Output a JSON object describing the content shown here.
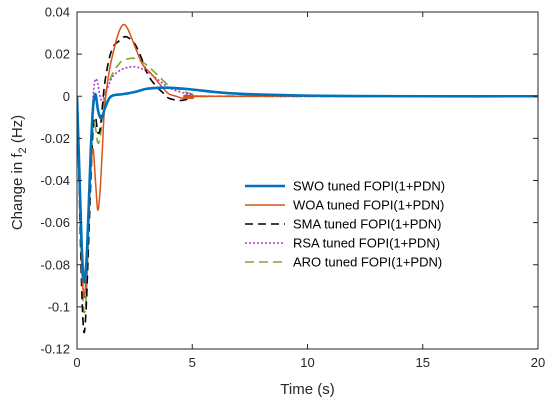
{
  "chart_data": {
    "type": "line",
    "title": "",
    "xlabel": "Time (s)",
    "ylabel_prefix": "Change in f",
    "ylabel_sub": "2",
    "ylabel_suffix": " (Hz)",
    "xlim": [
      0,
      20
    ],
    "ylim": [
      -0.12,
      0.04
    ],
    "xticks": [
      0,
      5,
      10,
      15,
      20
    ],
    "xtick_labels": [
      "0",
      "5",
      "10",
      "15",
      "20"
    ],
    "yticks": [
      -0.12,
      -0.1,
      -0.08,
      -0.06,
      -0.04,
      -0.02,
      0,
      0.02,
      0.04
    ],
    "ytick_labels": [
      "-0.12",
      "-0.1",
      "-0.08",
      "-0.06",
      "-0.04",
      "-0.02",
      "0",
      "0.02",
      "0.04"
    ],
    "grid": false,
    "legend_position": "center-right",
    "series": [
      {
        "name": "SWO tuned FOPI(1+PDN)",
        "color": "#0072BD",
        "dash": "solid",
        "width": 2.6,
        "points": [
          [
            0,
            0
          ],
          [
            0.1,
            -0.035
          ],
          [
            0.2,
            -0.07
          ],
          [
            0.3,
            -0.088
          ],
          [
            0.4,
            -0.08
          ],
          [
            0.5,
            -0.055
          ],
          [
            0.6,
            -0.025
          ],
          [
            0.7,
            -0.005
          ],
          [
            0.8,
            0.001
          ],
          [
            0.9,
            -0.006
          ],
          [
            1.0,
            -0.01
          ],
          [
            1.1,
            -0.01
          ],
          [
            1.2,
            -0.006
          ],
          [
            1.4,
            -0.001
          ],
          [
            1.6,
            0.0005
          ],
          [
            2.0,
            0.001
          ],
          [
            2.5,
            0.002
          ],
          [
            3.0,
            0.0035
          ],
          [
            3.5,
            0.004
          ],
          [
            4.0,
            0.004
          ],
          [
            5.0,
            0.0032
          ],
          [
            6.0,
            0.002
          ],
          [
            7.0,
            0.0012
          ],
          [
            8.0,
            0.0008
          ],
          [
            10.0,
            0.0003
          ],
          [
            12.0,
            0.0001
          ],
          [
            15.0,
            0
          ],
          [
            20.0,
            0
          ]
        ]
      },
      {
        "name": "WOA tuned FOPI(1+PDN)",
        "color": "#D95319",
        "dash": "solid",
        "width": 1.5,
        "points": [
          [
            0,
            0
          ],
          [
            0.1,
            -0.04
          ],
          [
            0.2,
            -0.08
          ],
          [
            0.3,
            -0.095
          ],
          [
            0.4,
            -0.085
          ],
          [
            0.5,
            -0.06
          ],
          [
            0.6,
            -0.035
          ],
          [
            0.7,
            -0.025
          ],
          [
            0.8,
            -0.04
          ],
          [
            0.9,
            -0.054
          ],
          [
            1.0,
            -0.045
          ],
          [
            1.1,
            -0.025
          ],
          [
            1.2,
            -0.005
          ],
          [
            1.4,
            0.012
          ],
          [
            1.6,
            0.022
          ],
          [
            1.8,
            0.03
          ],
          [
            2.0,
            0.034
          ],
          [
            2.2,
            0.032
          ],
          [
            2.5,
            0.024
          ],
          [
            2.8,
            0.016
          ],
          [
            3.0,
            0.013
          ],
          [
            3.2,
            0.011
          ],
          [
            3.5,
            0.007
          ],
          [
            3.8,
            0.003
          ],
          [
            4.0,
            0.001
          ],
          [
            4.3,
            0.0
          ],
          [
            4.6,
            -0.001
          ],
          [
            5.0,
            -0.0008
          ],
          [
            6.0,
            0
          ],
          [
            20.0,
            0
          ]
        ]
      },
      {
        "name": "SMA tuned FOPI(1+PDN)",
        "color": "#000000",
        "dash": "8,5",
        "width": 1.6,
        "points": [
          [
            0,
            0
          ],
          [
            0.1,
            -0.045
          ],
          [
            0.2,
            -0.09
          ],
          [
            0.3,
            -0.112
          ],
          [
            0.4,
            -0.1
          ],
          [
            0.5,
            -0.07
          ],
          [
            0.6,
            -0.04
          ],
          [
            0.7,
            -0.015
          ],
          [
            0.8,
            -0.01
          ],
          [
            0.9,
            -0.017
          ],
          [
            1.0,
            -0.016
          ],
          [
            1.1,
            -0.005
          ],
          [
            1.2,
            0.006
          ],
          [
            1.4,
            0.018
          ],
          [
            1.6,
            0.024
          ],
          [
            1.8,
            0.026
          ],
          [
            2.0,
            0.028
          ],
          [
            2.2,
            0.028
          ],
          [
            2.5,
            0.025
          ],
          [
            2.8,
            0.018
          ],
          [
            3.0,
            0.012
          ],
          [
            3.2,
            0.008
          ],
          [
            3.5,
            0.004
          ],
          [
            3.8,
            0.001
          ],
          [
            4.0,
            -0.001
          ],
          [
            4.5,
            -0.002
          ],
          [
            5.0,
            -0.001
          ],
          [
            6.0,
            0
          ],
          [
            20.0,
            0
          ]
        ]
      },
      {
        "name": "RSA tuned FOPI(1+PDN)",
        "color": "#B23AC5",
        "dash": "2,2",
        "width": 1.6,
        "points": [
          [
            0,
            0
          ],
          [
            0.1,
            -0.04
          ],
          [
            0.2,
            -0.075
          ],
          [
            0.3,
            -0.095
          ],
          [
            0.4,
            -0.09
          ],
          [
            0.5,
            -0.06
          ],
          [
            0.6,
            -0.025
          ],
          [
            0.7,
            0.0
          ],
          [
            0.8,
            0.008
          ],
          [
            0.9,
            0.006
          ],
          [
            1.0,
            0.0
          ],
          [
            1.1,
            -0.003
          ],
          [
            1.2,
            0.0
          ],
          [
            1.4,
            0.006
          ],
          [
            1.6,
            0.01
          ],
          [
            2.0,
            0.013
          ],
          [
            2.5,
            0.014
          ],
          [
            3.0,
            0.012
          ],
          [
            3.5,
            0.008
          ],
          [
            4.0,
            0.004
          ],
          [
            4.5,
            0.002
          ],
          [
            5.0,
            0.001
          ],
          [
            6.0,
            0
          ],
          [
            20.0,
            0
          ]
        ]
      },
      {
        "name": "ARO tuned FOPI(1+PDN)",
        "color": "#77AC30",
        "dash": "9,5",
        "width": 1.6,
        "points": [
          [
            0,
            0
          ],
          [
            0.1,
            -0.04
          ],
          [
            0.2,
            -0.08
          ],
          [
            0.3,
            -0.102
          ],
          [
            0.4,
            -0.095
          ],
          [
            0.5,
            -0.065
          ],
          [
            0.6,
            -0.035
          ],
          [
            0.7,
            -0.015
          ],
          [
            0.8,
            -0.015
          ],
          [
            0.9,
            -0.022
          ],
          [
            1.0,
            -0.02
          ],
          [
            1.1,
            -0.01
          ],
          [
            1.2,
            0.0
          ],
          [
            1.4,
            0.007
          ],
          [
            1.6,
            0.012
          ],
          [
            1.8,
            0.015
          ],
          [
            2.0,
            0.017
          ],
          [
            2.5,
            0.018
          ],
          [
            3.0,
            0.015
          ],
          [
            3.5,
            0.01
          ],
          [
            4.0,
            0.005
          ],
          [
            4.5,
            0.003
          ],
          [
            5.0,
            0.001
          ],
          [
            6.0,
            0
          ],
          [
            20.0,
            0
          ]
        ]
      }
    ]
  }
}
